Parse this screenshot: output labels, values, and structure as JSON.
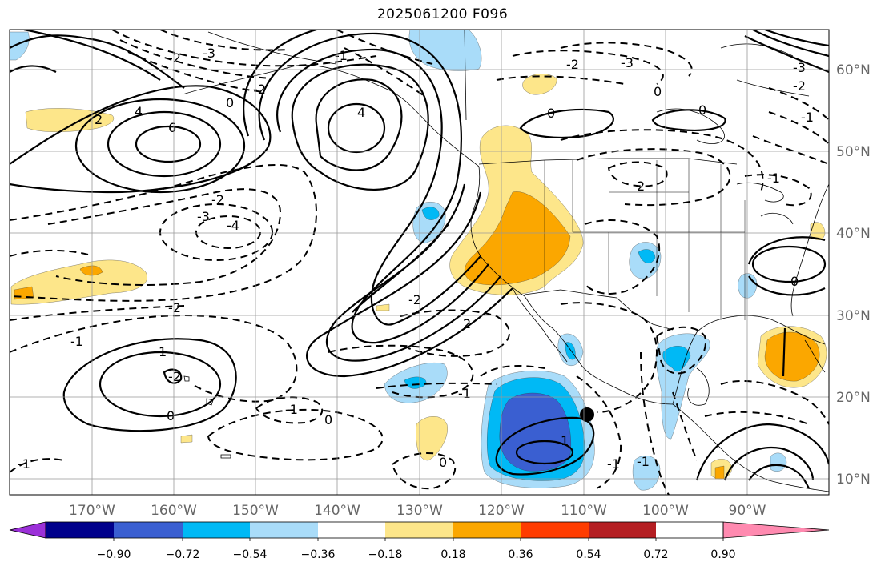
{
  "title": "2025061200 F096",
  "colors": {
    "fill_pos_018": "#fde68a",
    "fill_pos_036": "#fba700",
    "fill_neg_018": "#a9dcf9",
    "fill_neg_036": "#00b9f5",
    "fill_neg_054": "#3a5fd1",
    "contour": "#000000",
    "grid": "#999999"
  },
  "map": {
    "lon_labels": [
      "170°W",
      "160°W",
      "150°W",
      "140°W",
      "130°W",
      "120°W",
      "110°W",
      "100°W",
      "90°W"
    ],
    "lat_labels": [
      "60°N",
      "50°N",
      "40°N",
      "30°N",
      "20°N",
      "10°N"
    ],
    "contour_labels": [
      "-3",
      "-2",
      "-1",
      "0",
      "2",
      "4",
      "6",
      "-2",
      "-3",
      "-4",
      "-2",
      "-2",
      "-1",
      "-1",
      "0",
      "1",
      "0",
      "2",
      "-2",
      "-1",
      "0",
      "-1",
      "1",
      "-3",
      "4",
      "0",
      "-2",
      "-1",
      "0",
      "0",
      "-1",
      "2",
      "-1",
      "0",
      "-2",
      "-3",
      "-2",
      "-1"
    ],
    "marker": "filled-circle"
  },
  "colorbar": {
    "colors": [
      "#9b30d8",
      "#00008b",
      "#3a5fd1",
      "#00b9f5",
      "#a9dcf9",
      "#ffffff",
      "#fde68a",
      "#fba700",
      "#ff3c00",
      "#b41e22",
      "#ff8ab0"
    ],
    "tick_labels": [
      "−0.90",
      "−0.72",
      "−0.54",
      "−0.36",
      "−0.18",
      "0.18",
      "0.36",
      "0.54",
      "0.72",
      "0.90"
    ]
  }
}
